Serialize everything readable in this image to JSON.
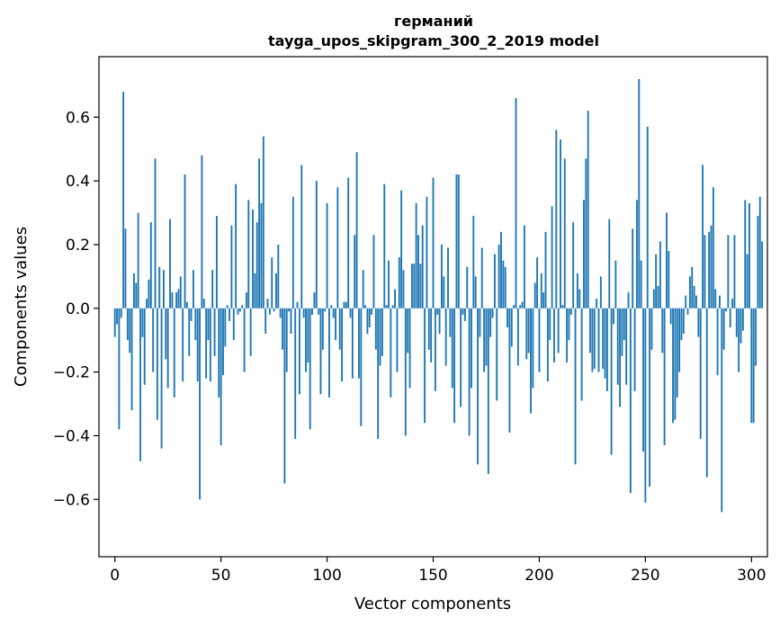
{
  "chart_data": {
    "type": "bar",
    "title": "германий",
    "subtitle": "tayga_upos_skipgram_300_2_2019 model",
    "xlabel": "Vector components",
    "ylabel": "Components values",
    "xlim": [
      -7.5,
      307.5
    ],
    "ylim": [
      -0.78,
      0.79
    ],
    "xticks": [
      0,
      50,
      100,
      150,
      200,
      250,
      300
    ],
    "yticks": [
      -0.6,
      -0.4,
      -0.2,
      0.0,
      0.2,
      0.4,
      0.6
    ],
    "ytick_labels": [
      "−0.6",
      "−0.4",
      "−0.2",
      "0.0",
      "0.2",
      "0.4",
      "0.6"
    ],
    "bar_color": "#1f77b4",
    "grid": false,
    "values": [
      -0.09,
      -0.05,
      -0.38,
      -0.03,
      0.68,
      0.25,
      -0.1,
      -0.14,
      -0.32,
      0.11,
      0.08,
      0.3,
      -0.48,
      -0.09,
      -0.24,
      0.03,
      0.09,
      0.27,
      -0.2,
      0.47,
      -0.35,
      0.13,
      -0.44,
      0.12,
      -0.16,
      -0.25,
      0.28,
      0.05,
      -0.28,
      0.05,
      0.06,
      0.1,
      -0.23,
      0.42,
      0.02,
      -0.15,
      -0.04,
      0.12,
      -0.1,
      -0.23,
      -0.6,
      0.48,
      0.03,
      -0.22,
      -0.1,
      -0.23,
      0.12,
      -0.15,
      0.29,
      -0.28,
      -0.43,
      -0.21,
      -0.12,
      0.01,
      -0.04,
      0.26,
      -0.1,
      0.39,
      -0.02,
      -0.01,
      0.01,
      -0.2,
      0.05,
      0.34,
      -0.15,
      0.31,
      0.11,
      0.27,
      0.47,
      0.33,
      0.54,
      -0.08,
      0.03,
      -0.02,
      0.16,
      -0.01,
      0.11,
      0.2,
      -0.03,
      -0.13,
      -0.55,
      -0.2,
      -0.01,
      -0.08,
      0.35,
      -0.41,
      0.02,
      -0.27,
      0.45,
      -0.03,
      -0.2,
      -0.17,
      -0.38,
      -0.02,
      0.05,
      0.4,
      -0.02,
      -0.27,
      -0.13,
      -0.01,
      0.33,
      -0.28,
      0.01,
      -0.03,
      -0.1,
      0.38,
      -0.13,
      -0.23,
      0.02,
      0.02,
      0.41,
      -0.03,
      -0.22,
      0.23,
      0.49,
      -0.22,
      -0.37,
      0.12,
      0.01,
      -0.08,
      -0.06,
      -0.02,
      0.23,
      -0.13,
      -0.41,
      -0.18,
      -0.15,
      0.39,
      0.01,
      0.15,
      -0.28,
      0.01,
      0.06,
      -0.2,
      0.16,
      0.37,
      0.12,
      -0.4,
      -0.14,
      -0.25,
      0.14,
      0.14,
      0.33,
      0.23,
      0.14,
      0.26,
      -0.36,
      0.35,
      -0.13,
      -0.17,
      0.41,
      -0.26,
      -0.02,
      -0.08,
      0.2,
      0.1,
      -0.18,
      0.19,
      -0.09,
      -0.25,
      -0.36,
      0.42,
      0.42,
      -0.31,
      -0.02,
      -0.04,
      0.13,
      -0.4,
      -0.25,
      0.29,
      0.1,
      -0.49,
      -0.09,
      0.19,
      -0.2,
      -0.18,
      -0.52,
      -0.09,
      -0.03,
      0.17,
      -0.29,
      0.2,
      0.24,
      0.15,
      0.13,
      -0.06,
      -0.39,
      -0.12,
      0.01,
      0.66,
      -0.18,
      0.01,
      0.02,
      0.26,
      -0.16,
      -0.14,
      -0.33,
      -0.25,
      0.08,
      0.16,
      -0.2,
      0.11,
      0.05,
      0.24,
      -0.23,
      -0.1,
      0.32,
      -0.17,
      0.56,
      -0.14,
      0.53,
      0.01,
      0.47,
      -0.17,
      -0.1,
      -0.02,
      0.27,
      -0.49,
      0.11,
      0.06,
      -0.29,
      0.34,
      0.47,
      0.62,
      -0.14,
      -0.2,
      -0.19,
      0.03,
      -0.2,
      0.1,
      -0.19,
      -0.22,
      -0.26,
      0.28,
      -0.46,
      -0.05,
      0.15,
      -0.24,
      -0.31,
      -0.15,
      -0.1,
      -0.24,
      0.05,
      -0.58,
      0.25,
      -0.26,
      0.34,
      0.72,
      0.15,
      -0.45,
      -0.61,
      0.57,
      -0.56,
      -0.13,
      0.06,
      0.17,
      0.07,
      0.21,
      -0.14,
      -0.43,
      0.3,
      0.18,
      -0.05,
      -0.36,
      -0.35,
      -0.28,
      -0.2,
      -0.1,
      -0.08,
      0.04,
      -0.02,
      0.1,
      0.13,
      0.07,
      0.04,
      -0.09,
      -0.41,
      0.45,
      0.23,
      -0.53,
      0.24,
      0.26,
      0.38,
      0.06,
      -0.21,
      0.04,
      -0.64,
      -0.13,
      -0.01,
      0.23,
      -0.06,
      0.03,
      0.23,
      -0.09,
      -0.2,
      -0.11,
      -0.07,
      0.34,
      0.17,
      0.33,
      -0.36,
      -0.36,
      -0.18,
      0.29,
      0.35,
      0.21
    ]
  }
}
